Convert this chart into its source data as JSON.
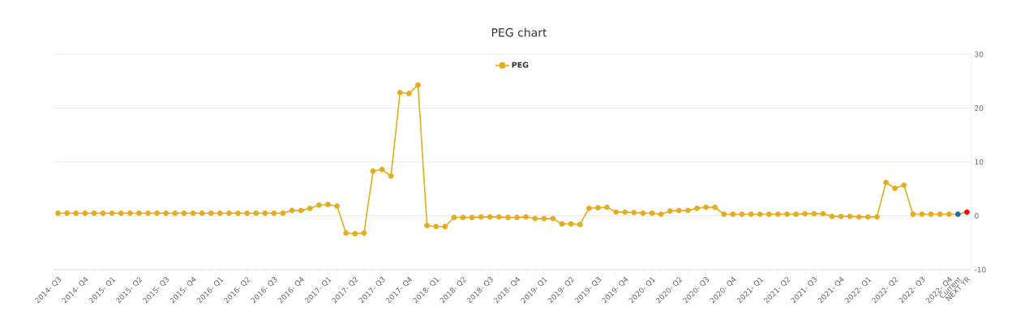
{
  "chart_data": {
    "type": "line",
    "title": "PEG chart",
    "categories": [
      "2014- Q3",
      null,
      null,
      "2014- Q4",
      null,
      null,
      "2015- Q1",
      null,
      null,
      "2015- Q2",
      null,
      null,
      "2015- Q3",
      null,
      null,
      "2015- Q4",
      null,
      null,
      "2016- Q1",
      null,
      null,
      "2016- Q2",
      null,
      null,
      "2016- Q3",
      null,
      null,
      "2016- Q4",
      null,
      null,
      "2017- Q1",
      null,
      null,
      "2017- Q2",
      null,
      null,
      "2017- Q3",
      null,
      null,
      "2017- Q4",
      null,
      null,
      "2018- Q1",
      null,
      null,
      "2018- Q2",
      null,
      null,
      "2018- Q3",
      null,
      null,
      "2018- Q4",
      null,
      null,
      "2019- Q1",
      null,
      null,
      "2019- Q2",
      null,
      null,
      "2019- Q3",
      null,
      null,
      "2019- Q4",
      null,
      null,
      "2020- Q1",
      null,
      null,
      "2020- Q2",
      null,
      null,
      "2020- Q3",
      null,
      null,
      "2020- Q4",
      null,
      null,
      "2021- Q1",
      null,
      null,
      "2021- Q2",
      null,
      null,
      "2021- Q3",
      null,
      null,
      "2021- Q4",
      null,
      null,
      "2022- Q1",
      null,
      null,
      "2022- Q2",
      null,
      null,
      "2022- Q3",
      null,
      null,
      "2022- Q4",
      "Current",
      "NEXT YR"
    ],
    "series": [
      {
        "name": "PEG",
        "color": "#e3ad1c",
        "values": [
          0.5,
          0.5,
          0.5,
          0.5,
          0.5,
          0.5,
          0.5,
          0.5,
          0.5,
          0.5,
          0.5,
          0.5,
          0.5,
          0.5,
          0.5,
          0.5,
          0.5,
          0.5,
          0.5,
          0.5,
          0.5,
          0.5,
          0.5,
          0.5,
          0.5,
          0.5,
          1.0,
          1.0,
          1.4,
          2.0,
          2.1,
          1.8,
          -3.2,
          -3.3,
          -3.2,
          8.3,
          8.6,
          7.4,
          22.9,
          22.7,
          24.3,
          -1.8,
          -2.0,
          -2.0,
          -0.3,
          -0.3,
          -0.3,
          -0.2,
          -0.2,
          -0.2,
          -0.3,
          -0.3,
          -0.2,
          -0.5,
          -0.5,
          -0.5,
          -1.5,
          -1.5,
          -1.6,
          1.4,
          1.5,
          1.6,
          0.7,
          0.7,
          0.6,
          0.5,
          0.5,
          0.3,
          0.9,
          1.0,
          1.0,
          1.4,
          1.6,
          1.6,
          0.3,
          0.3,
          0.3,
          0.3,
          0.3,
          0.3,
          0.3,
          0.3,
          0.3,
          0.4,
          0.4,
          0.4,
          -0.1,
          -0.1,
          -0.1,
          -0.2,
          -0.2,
          -0.2,
          6.2,
          5.1,
          5.7,
          0.3,
          0.3,
          0.3,
          0.3,
          0.3,
          0.3,
          0.7
        ],
        "colors": [
          "#e3ad1c",
          "#e3ad1c",
          "#e3ad1c",
          "#e3ad1c",
          "#e3ad1c",
          "#e3ad1c",
          "#e3ad1c",
          "#e3ad1c",
          "#e3ad1c",
          "#e3ad1c",
          "#e3ad1c",
          "#e3ad1c",
          "#e3ad1c",
          "#e3ad1c",
          "#e3ad1c",
          "#e3ad1c",
          "#e3ad1c",
          "#e3ad1c",
          "#e3ad1c",
          "#e3ad1c",
          "#e3ad1c",
          "#e3ad1c",
          "#e3ad1c",
          "#e3ad1c",
          "#e3ad1c",
          "#e3ad1c",
          "#e3ad1c",
          "#e3ad1c",
          "#e3ad1c",
          "#e3ad1c",
          "#e3ad1c",
          "#e3ad1c",
          "#e3ad1c",
          "#e3ad1c",
          "#e3ad1c",
          "#e3ad1c",
          "#e3ad1c",
          "#e3ad1c",
          "#e3ad1c",
          "#e3ad1c",
          "#e3ad1c",
          "#e3ad1c",
          "#e3ad1c",
          "#e3ad1c",
          "#e3ad1c",
          "#e3ad1c",
          "#e3ad1c",
          "#e3ad1c",
          "#e3ad1c",
          "#e3ad1c",
          "#e3ad1c",
          "#e3ad1c",
          "#e3ad1c",
          "#e3ad1c",
          "#e3ad1c",
          "#e3ad1c",
          "#e3ad1c",
          "#e3ad1c",
          "#e3ad1c",
          "#e3ad1c",
          "#e3ad1c",
          "#e3ad1c",
          "#e3ad1c",
          "#e3ad1c",
          "#e3ad1c",
          "#e3ad1c",
          "#e3ad1c",
          "#e3ad1c",
          "#e3ad1c",
          "#e3ad1c",
          "#e3ad1c",
          "#e3ad1c",
          "#e3ad1c",
          "#e3ad1c",
          "#e3ad1c",
          "#e3ad1c",
          "#e3ad1c",
          "#e3ad1c",
          "#e3ad1c",
          "#e3ad1c",
          "#e3ad1c",
          "#e3ad1c",
          "#e3ad1c",
          "#e3ad1c",
          "#e3ad1c",
          "#e3ad1c",
          "#e3ad1c",
          "#e3ad1c",
          "#e3ad1c",
          "#e3ad1c",
          "#e3ad1c",
          "#e3ad1c",
          "#e3ad1c",
          "#e3ad1c",
          "#e3ad1c",
          "#e3ad1c",
          "#e3ad1c",
          "#e3ad1c",
          "#e3ad1c",
          "#e3ad1c",
          "#1a6fa8",
          "#ff0000"
        ]
      }
    ],
    "ylim": [
      -10,
      30
    ],
    "yticks": [
      -10,
      0,
      10,
      20,
      30
    ],
    "grid": "y",
    "legend": "top",
    "marker": "circle",
    "line_style": "solid"
  }
}
